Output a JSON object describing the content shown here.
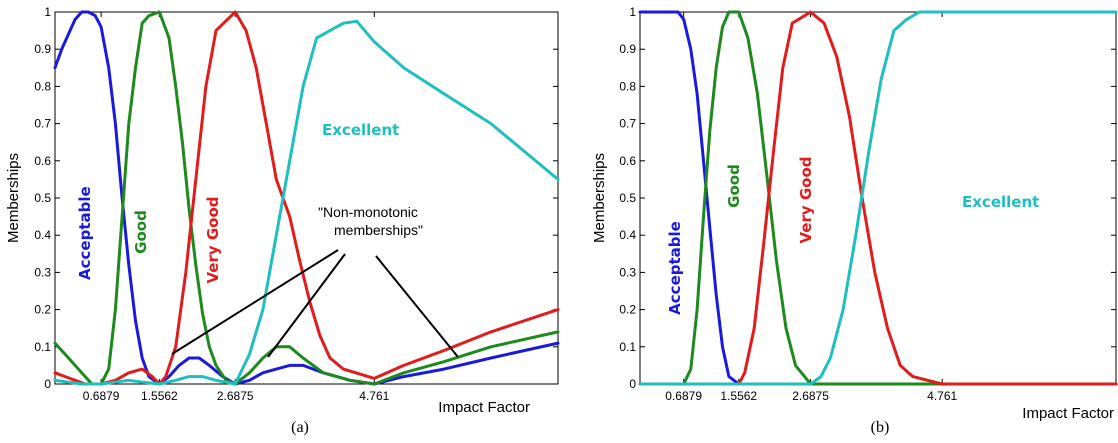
{
  "chart_data": [
    {
      "type": "line",
      "caption": "(a)",
      "xlabel": "Impact Factor",
      "ylabel": "Memberships",
      "xlim": [
        0,
        7.5
      ],
      "ylim": [
        0,
        1
      ],
      "x_ticks": [
        0.6879,
        1.5562,
        2.6875,
        4.761
      ],
      "x_tick_labels": [
        "0.6879",
        "1.5562",
        "2.6875",
        "4.761"
      ],
      "y_ticks": [
        0,
        0.1,
        0.2,
        0.3,
        0.4,
        0.5,
        0.6,
        0.7,
        0.8,
        0.9,
        1
      ],
      "y_tick_labels": [
        "0",
        "0.1",
        "0.2",
        "0.3",
        "0.4",
        "0.5",
        "0.6",
        "0.7",
        "0.8",
        "0.9",
        "1"
      ],
      "series": [
        {
          "name": "Acceptable",
          "color": "#1a1adf",
          "x": [
            0,
            0.1,
            0.2,
            0.3,
            0.4,
            0.5,
            0.6,
            0.6879,
            0.8,
            0.9,
            1.0,
            1.1,
            1.2,
            1.3,
            1.4,
            1.5562,
            1.7,
            1.85,
            2.0,
            2.15,
            2.3,
            2.5,
            2.6875,
            2.9,
            3.1,
            3.3,
            3.5,
            3.7,
            4.0,
            4.4,
            4.761,
            5.2,
            5.8,
            6.5,
            7.5
          ],
          "y": [
            0.85,
            0.9,
            0.94,
            0.98,
            1.0,
            1.0,
            0.99,
            0.96,
            0.85,
            0.7,
            0.5,
            0.32,
            0.17,
            0.07,
            0.02,
            0.0,
            0.02,
            0.05,
            0.07,
            0.07,
            0.05,
            0.02,
            0.0,
            0.01,
            0.03,
            0.04,
            0.05,
            0.05,
            0.03,
            0.01,
            0.0,
            0.02,
            0.04,
            0.07,
            0.11
          ]
        },
        {
          "name": "Good",
          "color": "#1e8a1e",
          "x": [
            0,
            0.15,
            0.3,
            0.45,
            0.55,
            0.6879,
            0.8,
            0.9,
            1.0,
            1.1,
            1.2,
            1.3,
            1.4,
            1.5562,
            1.7,
            1.8,
            1.9,
            2.0,
            2.1,
            2.2,
            2.3,
            2.4,
            2.55,
            2.6875,
            2.9,
            3.1,
            3.3,
            3.5,
            3.7,
            4.0,
            4.4,
            4.761,
            5.2,
            5.8,
            6.5,
            7.5
          ],
          "y": [
            0.11,
            0.08,
            0.05,
            0.02,
            0.0,
            0.0,
            0.04,
            0.2,
            0.45,
            0.7,
            0.85,
            0.97,
            0.99,
            1.0,
            0.93,
            0.8,
            0.65,
            0.47,
            0.32,
            0.19,
            0.1,
            0.05,
            0.01,
            0.0,
            0.03,
            0.07,
            0.1,
            0.1,
            0.07,
            0.03,
            0.01,
            0.0,
            0.03,
            0.06,
            0.1,
            0.14
          ]
        },
        {
          "name": "Very Good",
          "color": "#e21b1b",
          "x": [
            0,
            0.15,
            0.3,
            0.45,
            0.6879,
            0.9,
            1.1,
            1.3,
            1.45,
            1.5562,
            1.65,
            1.8,
            1.95,
            2.1,
            2.25,
            2.4,
            2.6875,
            2.85,
            3.0,
            3.15,
            3.3,
            3.5,
            3.65,
            3.8,
            3.95,
            4.1,
            4.3,
            4.761,
            5.2,
            5.8,
            6.5,
            7.5
          ],
          "y": [
            0.03,
            0.02,
            0.01,
            0.0,
            0.0,
            0.01,
            0.03,
            0.04,
            0.02,
            0.0,
            0.02,
            0.1,
            0.3,
            0.55,
            0.8,
            0.95,
            1.0,
            0.95,
            0.85,
            0.7,
            0.55,
            0.45,
            0.33,
            0.22,
            0.13,
            0.07,
            0.04,
            0.015,
            0.05,
            0.09,
            0.14,
            0.2
          ]
        },
        {
          "name": "Excellent",
          "color": "#1fbfbf",
          "x": [
            0,
            0.4,
            0.6879,
            0.9,
            1.1,
            1.3,
            1.5562,
            1.8,
            2.0,
            2.2,
            2.4,
            2.6875,
            2.9,
            3.1,
            3.3,
            3.5,
            3.7,
            3.9,
            4.1,
            4.3,
            4.5,
            4.761,
            5.2,
            5.8,
            6.5,
            7.5
          ],
          "y": [
            0.01,
            0.0,
            0.0,
            0.005,
            0.01,
            0.005,
            0.0,
            0.01,
            0.02,
            0.02,
            0.01,
            0.0,
            0.08,
            0.2,
            0.4,
            0.6,
            0.8,
            0.93,
            0.95,
            0.97,
            0.975,
            0.92,
            0.85,
            0.78,
            0.7,
            0.55
          ]
        }
      ],
      "series_labels": [
        "Acceptable",
        "Good",
        "Very Good",
        "Excellent"
      ],
      "annotation": [
        "\"Non-monotonic",
        "memberships\""
      ]
    },
    {
      "type": "line",
      "caption": "(b)",
      "xlabel": "Impact Factor",
      "ylabel": "Memberships",
      "xlim": [
        0,
        7.5
      ],
      "ylim": [
        0,
        1
      ],
      "x_ticks": [
        0.6879,
        1.5562,
        2.6875,
        4.761
      ],
      "x_tick_labels": [
        "0.6879",
        "1.5562",
        "2.6875",
        "4.761"
      ],
      "y_ticks": [
        0,
        0.1,
        0.2,
        0.3,
        0.4,
        0.5,
        0.6,
        0.7,
        0.8,
        0.9,
        1
      ],
      "y_tick_labels": [
        "0",
        "0.1",
        "0.2",
        "0.3",
        "0.4",
        "0.5",
        "0.6",
        "0.7",
        "0.8",
        "0.9",
        "1"
      ],
      "series": [
        {
          "name": "Acceptable",
          "color": "#1a1adf",
          "x": [
            0,
            0.4,
            0.6,
            0.6879,
            0.8,
            0.9,
            1.0,
            1.1,
            1.2,
            1.3,
            1.4,
            1.5562,
            2.0,
            7.5
          ],
          "y": [
            1.0,
            1.0,
            1.0,
            0.98,
            0.9,
            0.78,
            0.6,
            0.42,
            0.24,
            0.1,
            0.02,
            0.0,
            0.0,
            0.0
          ]
        },
        {
          "name": "Good",
          "color": "#1e8a1e",
          "x": [
            0,
            0.6879,
            0.8,
            0.9,
            1.0,
            1.1,
            1.2,
            1.3,
            1.4,
            1.5562,
            1.7,
            1.85,
            2.0,
            2.15,
            2.3,
            2.45,
            2.6875,
            3.0,
            7.5
          ],
          "y": [
            0.0,
            0.0,
            0.04,
            0.2,
            0.45,
            0.68,
            0.85,
            0.96,
            1.0,
            1.0,
            0.93,
            0.78,
            0.56,
            0.33,
            0.15,
            0.05,
            0.0,
            0.0,
            0.0
          ]
        },
        {
          "name": "Very Good",
          "color": "#e21b1b",
          "x": [
            0,
            1.5562,
            1.65,
            1.8,
            1.95,
            2.1,
            2.25,
            2.4,
            2.6875,
            2.9,
            3.1,
            3.3,
            3.5,
            3.7,
            3.9,
            4.1,
            4.3,
            4.761,
            7.5
          ],
          "y": [
            0.0,
            0.0,
            0.03,
            0.15,
            0.38,
            0.62,
            0.85,
            0.97,
            1.0,
            0.97,
            0.88,
            0.72,
            0.5,
            0.3,
            0.15,
            0.05,
            0.02,
            0.0,
            0.0
          ]
        },
        {
          "name": "Excellent",
          "color": "#1fbfbf",
          "x": [
            0,
            2.6875,
            2.85,
            3.0,
            3.2,
            3.4,
            3.6,
            3.8,
            4.0,
            4.2,
            4.4,
            4.761,
            7.5
          ],
          "y": [
            0.0,
            0.0,
            0.02,
            0.07,
            0.2,
            0.4,
            0.62,
            0.82,
            0.95,
            0.98,
            1.0,
            1.0,
            1.0
          ]
        }
      ],
      "series_labels": [
        "Acceptable",
        "Good",
        "Very Good",
        "Excellent"
      ]
    }
  ]
}
